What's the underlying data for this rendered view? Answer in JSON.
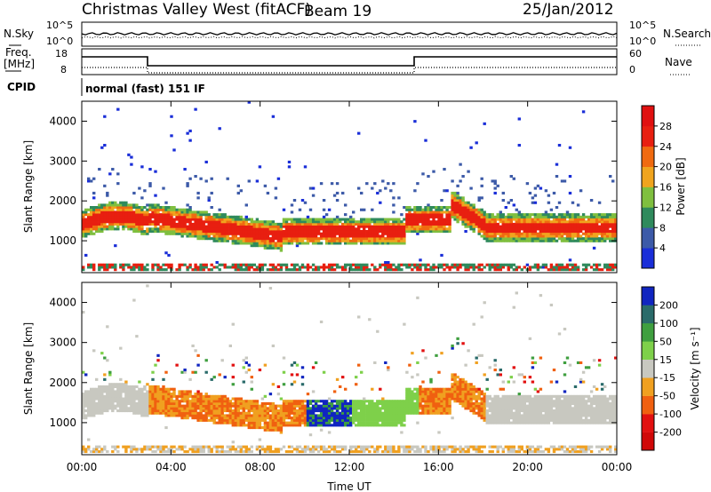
{
  "header": {
    "title": "Christmas Valley West (fitACF)",
    "beam": "Beam 19",
    "date": "25/Jan/2012"
  },
  "panels": {
    "nsky_label": "N.Sky",
    "nsearch_label": "N.Search",
    "freq_label_1": "Freq.",
    "freq_label_2": "[MHz]",
    "nave_label": "Nave",
    "cpid_label": "CPID",
    "cpid_text": "normal (fast) 151 IF",
    "noise_left_ticks": [
      "10^5",
      "10^0"
    ],
    "noise_right_ticks": [
      "10^5",
      "10^0"
    ],
    "freq_ticks": [
      "18",
      "8"
    ],
    "nave_ticks": [
      "60",
      "0"
    ]
  },
  "chart_data": [
    {
      "type": "heatmap",
      "name": "power",
      "ylabel": "Slant Range [km]",
      "yticks": [
        1000,
        2000,
        3000,
        4000
      ],
      "ylim": [
        200,
        4500
      ],
      "xlim": [
        0,
        24
      ],
      "colorbar": {
        "label": "Power [dB]",
        "ticks": [
          "4",
          "8",
          "12",
          "16",
          "20",
          "24",
          "28"
        ],
        "colors": [
          "#1a2ed8",
          "#3c5aa8",
          "#2f8a5c",
          "#7fbf3f",
          "#f0a41e",
          "#f06a10",
          "#e81f10",
          "#e01010"
        ]
      }
    },
    {
      "type": "heatmap",
      "name": "velocity",
      "ylabel": "Slant Range [km]",
      "xlabel": "Time UT",
      "yticks": [
        1000,
        2000,
        3000,
        4000
      ],
      "ylim": [
        200,
        4500
      ],
      "xlim": [
        0,
        24
      ],
      "xticks": [
        "00:00",
        "04:00",
        "08:00",
        "12:00",
        "16:00",
        "20:00",
        "00:00"
      ],
      "colorbar": {
        "label": "Velocity [m s⁻¹]",
        "ticks": [
          "200",
          "100",
          "50",
          "15",
          "-15",
          "-50",
          "-100",
          "-200"
        ],
        "colors": [
          "#1025c0",
          "#2a6b6a",
          "#3f9f3f",
          "#7ed04a",
          "#c8c8c0",
          "#f0a020",
          "#f06010",
          "#e21010",
          "#d00808"
        ]
      }
    }
  ]
}
